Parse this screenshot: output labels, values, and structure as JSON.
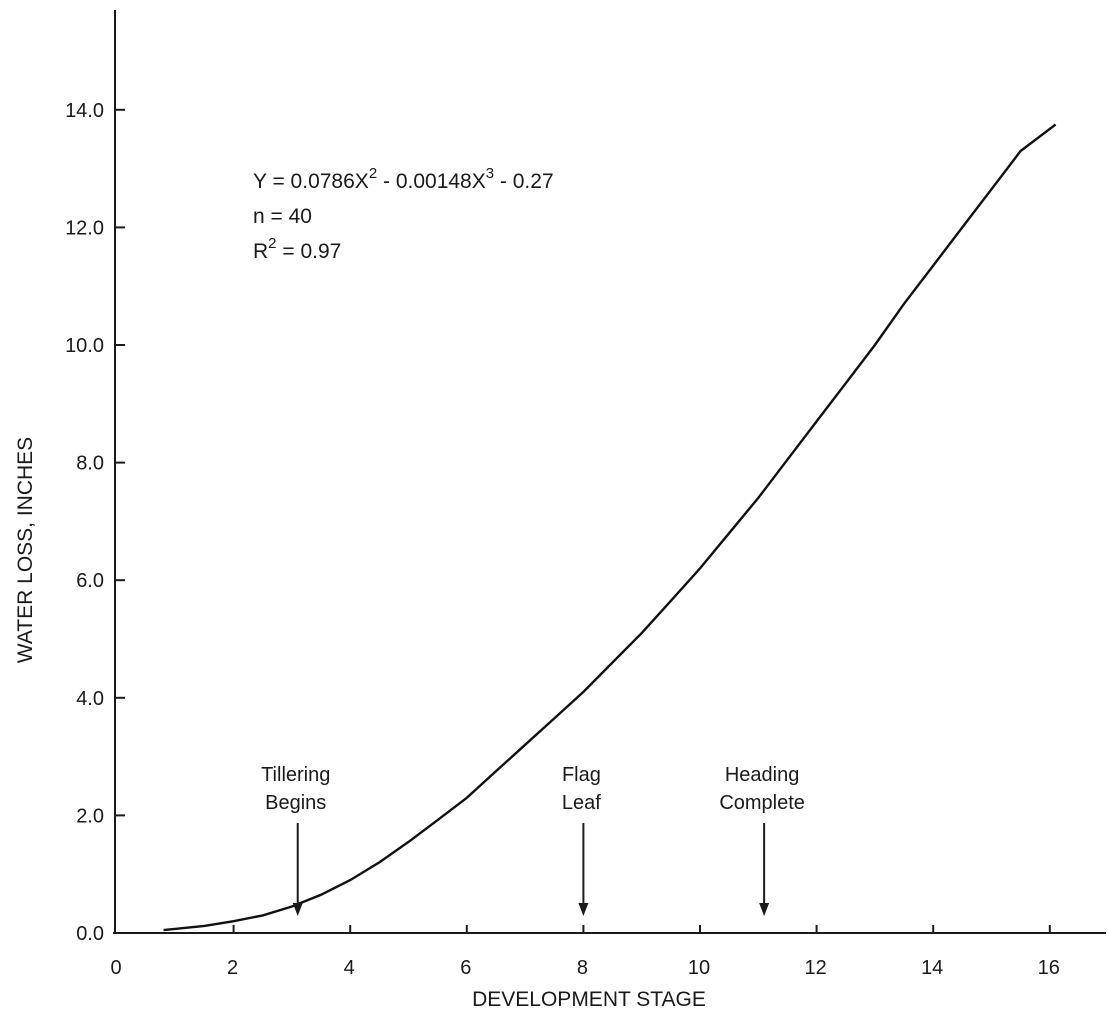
{
  "chart_data": {
    "type": "line",
    "xlabel": "DEVELOPMENT STAGE",
    "ylabel": "WATER LOSS, INCHES",
    "xlim": [
      0,
      17
    ],
    "ylim": [
      0,
      15.5
    ],
    "x_ticks": [
      0,
      2,
      4,
      6,
      8,
      10,
      12,
      14,
      16
    ],
    "x_tick_labels": [
      "0",
      "2",
      "4",
      "6",
      "8",
      "10",
      "12",
      "14",
      "16"
    ],
    "y_ticks": [
      0,
      2,
      4,
      6,
      8,
      10,
      12,
      14
    ],
    "y_tick_labels": [
      "0.0",
      "2.0",
      "4.0",
      "6.0",
      "8.0",
      "10.0",
      "12.0",
      "14.0"
    ],
    "grid": false,
    "equation": {
      "y_part": "Y = 0.0786X",
      "sup1": "2",
      "mid_part": " - 0.00148X",
      "sup2": "3",
      "end_part": " - 0.27",
      "n_line": "n = 40",
      "r_prefix": "R",
      "r_sup": "2",
      "r_suffix": " = 0.97"
    },
    "series": [
      {
        "x": [
          0.8,
          1.5,
          2.0,
          2.5,
          3.0,
          3.5,
          4.0,
          4.5,
          5.0,
          5.5,
          6.0,
          6.5,
          7.0,
          7.5,
          8.0,
          8.5,
          9.0,
          9.5,
          10.0,
          10.5,
          11.0,
          11.5,
          12.0,
          12.5,
          13.0,
          13.5,
          14.0,
          14.5,
          15.0,
          15.5,
          16.1
        ],
        "y": [
          0.05,
          0.12,
          0.2,
          0.3,
          0.45,
          0.65,
          0.9,
          1.2,
          1.55,
          1.92,
          2.3,
          2.75,
          3.2,
          3.65,
          4.1,
          4.6,
          5.1,
          5.65,
          6.2,
          6.8,
          7.4,
          8.05,
          8.7,
          9.35,
          10.0,
          10.7,
          11.35,
          12.0,
          12.65,
          13.3,
          13.75
        ]
      }
    ],
    "annotations": [
      {
        "line1": "Tillering",
        "line2": "Begins",
        "x": 3.1
      },
      {
        "line1": "Flag",
        "line2": "Leaf",
        "x": 8.0
      },
      {
        "line1": "Heading",
        "line2": "Complete",
        "x": 11.1
      }
    ]
  }
}
